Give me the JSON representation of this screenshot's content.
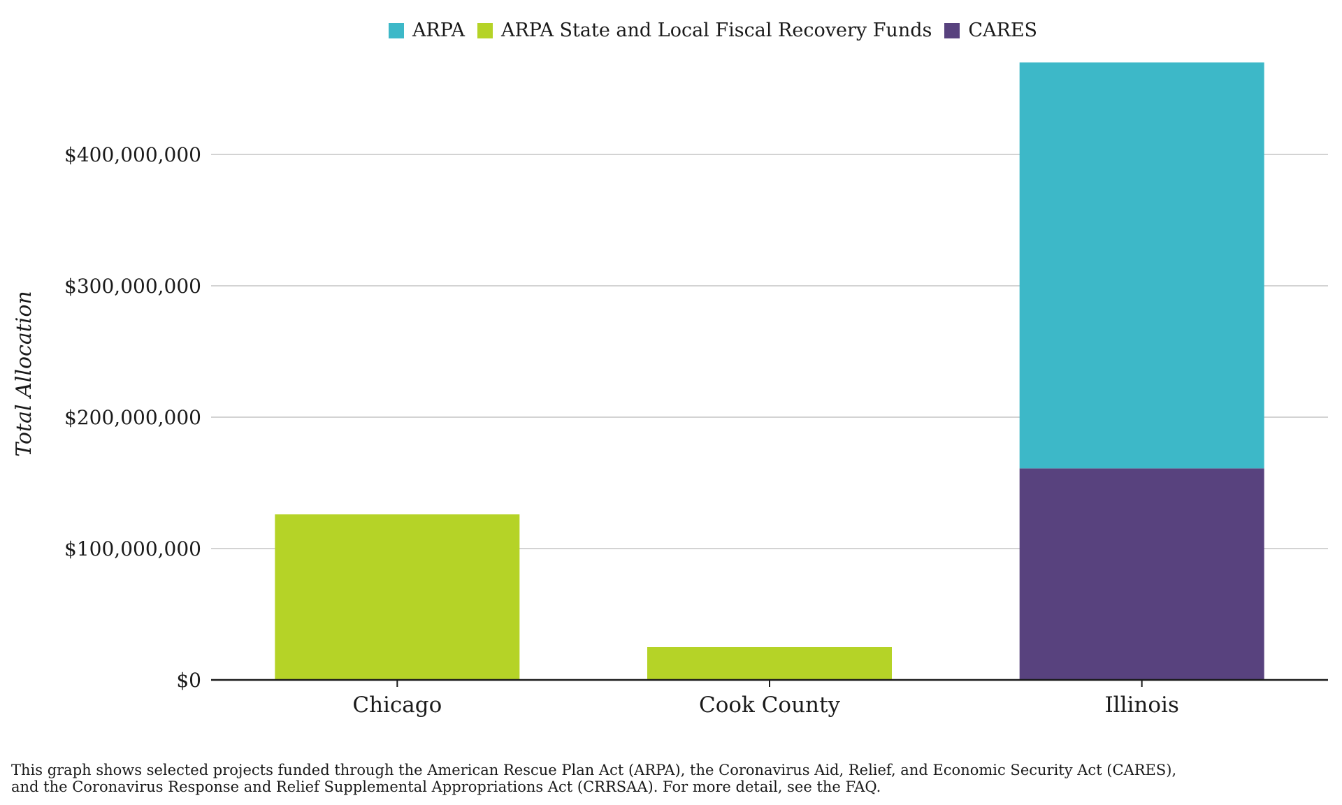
{
  "chart_data": {
    "type": "bar",
    "stacked": true,
    "categories": [
      "Chicago",
      "Cook County",
      "Illinois"
    ],
    "series": [
      {
        "name": "ARPA",
        "color": "#3db8c8",
        "values": [
          0,
          0,
          309000000
        ]
      },
      {
        "name": "ARPA State and Local Fiscal Recovery Funds",
        "color": "#b5d327",
        "values": [
          126000000,
          25000000,
          0
        ]
      },
      {
        "name": "CARES",
        "color": "#58427e",
        "values": [
          0,
          0,
          161000000
        ]
      }
    ],
    "stack_order": [
      "CARES",
      "ARPA State and Local Fiscal Recovery Funds",
      "ARPA"
    ],
    "legend_order": [
      "ARPA",
      "ARPA State and Local Fiscal Recovery Funds",
      "CARES"
    ],
    "ylabel": "Total Allocation",
    "xlabel": "",
    "ylim": [
      0,
      470000000
    ],
    "yticks": [
      0,
      100000000,
      200000000,
      300000000,
      400000000
    ],
    "ytick_labels": [
      "$0",
      "$100,000,000",
      "$200,000,000",
      "$300,000,000",
      "$400,000,000"
    ],
    "grid": true,
    "legend_position": "top-center"
  },
  "caption": {
    "line1": "This graph shows selected projects funded through the American Rescue Plan Act (ARPA), the Coronavirus Aid, Relief, and Economic Security Act (CARES),",
    "line2": "and the Coronavirus Response and Relief Supplemental Appropriations Act (CRRSAA). For more detail, see the FAQ."
  },
  "colors": {
    "grid": "#d3d3d3",
    "axis": "#1a1a1a",
    "text": "#1a1a1a"
  }
}
